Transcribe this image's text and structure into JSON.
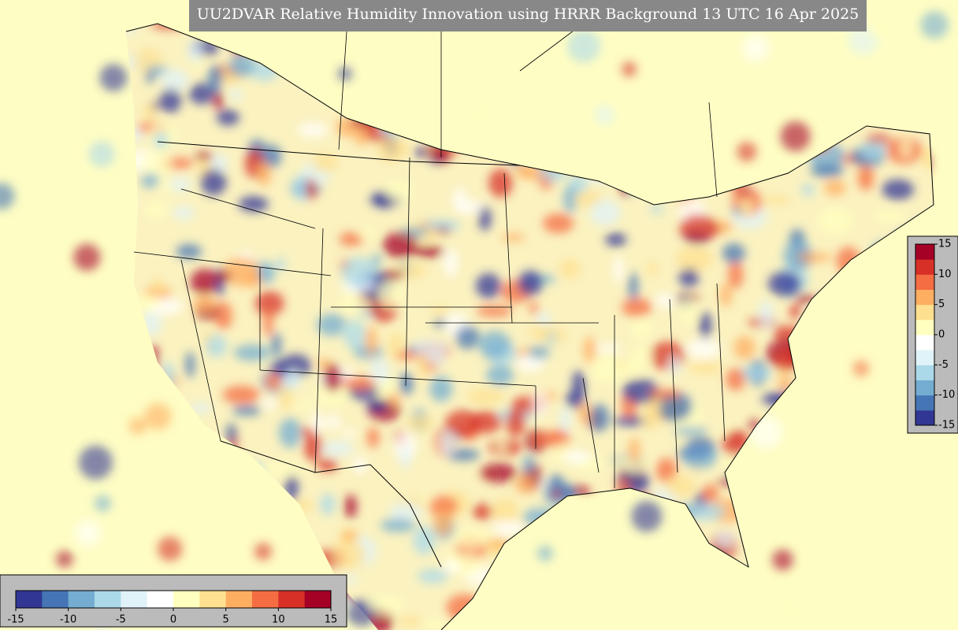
{
  "title": "UU2DVAR Relative Humidity Innovation using HRRR Background 13 UTC 16 Apr 2025",
  "colorbar": {
    "range": [
      -15,
      15
    ],
    "ticks": [
      -15,
      -10,
      -5,
      0,
      5,
      10,
      15
    ],
    "colors": [
      "#313695",
      "#4575b4",
      "#74add1",
      "#abd9e9",
      "#e0f3f8",
      "#ffffff",
      "#ffffbf",
      "#fee090",
      "#fdae61",
      "#f46d43",
      "#d73027",
      "#a50026"
    ]
  }
}
